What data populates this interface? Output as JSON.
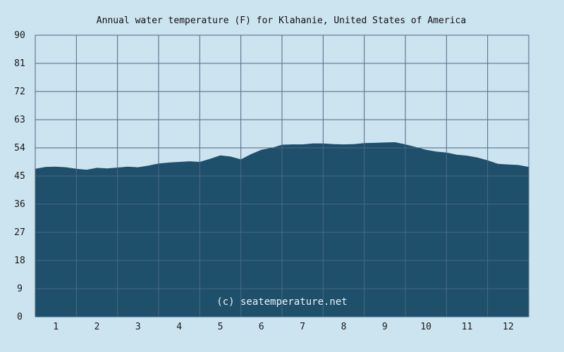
{
  "chart_data": {
    "type": "area",
    "title": "Annual water temperature (F) for Klahanie, United States of America",
    "credit": "(c) seatemperature.net",
    "xlabel": "",
    "ylabel": "",
    "ylim": [
      0,
      90
    ],
    "xlim": [
      0.5,
      12.5
    ],
    "y_ticks": [
      0,
      9,
      18,
      27,
      36,
      45,
      54,
      63,
      72,
      81,
      90
    ],
    "x_ticks": [
      1,
      2,
      3,
      4,
      5,
      6,
      7,
      8,
      9,
      10,
      11,
      12
    ],
    "grid": true,
    "legend": "none",
    "colors": {
      "background": "#cce3f0",
      "plot_background": "#cce3f0",
      "fill": "#1e4f6b",
      "grid": "#4a6a82",
      "credit": "#e8f2f8"
    },
    "x": [
      0.5,
      0.75,
      1.0,
      1.25,
      1.5,
      1.75,
      2.0,
      2.25,
      2.5,
      2.75,
      3.0,
      3.25,
      3.5,
      3.75,
      4.0,
      4.25,
      4.5,
      4.75,
      5.0,
      5.25,
      5.5,
      5.75,
      6.0,
      6.25,
      6.5,
      6.75,
      7.0,
      7.25,
      7.5,
      7.75,
      8.0,
      8.25,
      8.5,
      8.75,
      9.0,
      9.25,
      9.5,
      9.75,
      10.0,
      10.25,
      10.5,
      10.75,
      11.0,
      11.25,
      11.5,
      11.75,
      12.0,
      12.25,
      12.5
    ],
    "series": [
      {
        "values": [
          47.3,
          47.9,
          48.0,
          47.8,
          47.3,
          47.0,
          47.6,
          47.4,
          47.7,
          48.0,
          47.8,
          48.3,
          49.0,
          49.3,
          49.5,
          49.7,
          49.5,
          50.5,
          51.6,
          51.2,
          50.3,
          52.0,
          53.4,
          54.0,
          55.0,
          55.1,
          55.1,
          55.4,
          55.4,
          55.2,
          55.1,
          55.2,
          55.5,
          55.6,
          55.7,
          55.8,
          55.1,
          54.3,
          53.4,
          52.8,
          52.5,
          51.8,
          51.5,
          50.9,
          50.0,
          48.9,
          48.7,
          48.5,
          47.9
        ]
      }
    ]
  }
}
